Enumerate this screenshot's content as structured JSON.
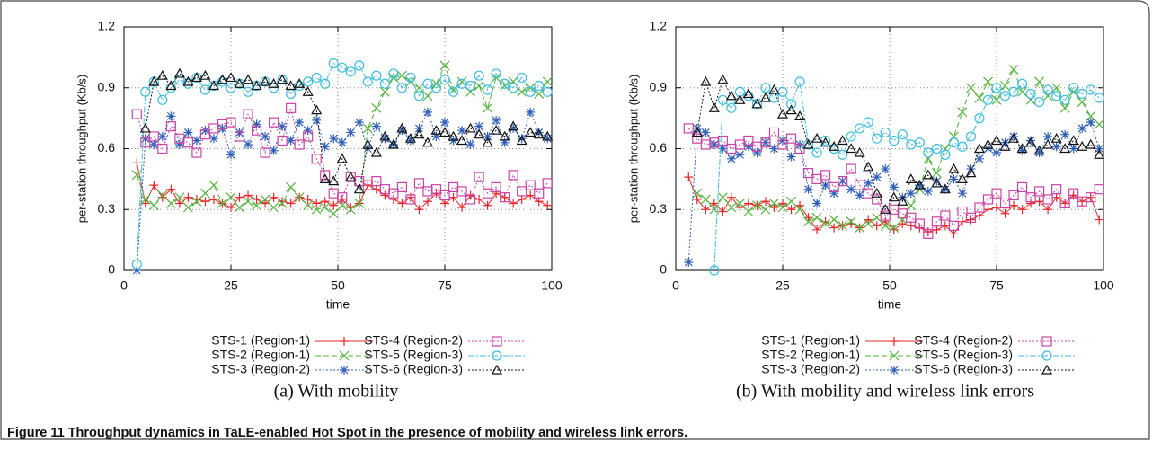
{
  "chart_data": [
    {
      "type": "line",
      "caption": "(a) With mobility",
      "xlabel": "time",
      "ylabel": "per-station throughput (Kb/s)",
      "xlim": [
        0,
        100
      ],
      "ylim": [
        0,
        1.2
      ],
      "xticks": [
        0,
        25,
        50,
        75,
        100
      ],
      "yticks": [
        0,
        0.3,
        0.6,
        0.9,
        1.2
      ],
      "grid": true,
      "x": [
        3,
        5,
        7,
        9,
        11,
        13,
        15,
        17,
        19,
        21,
        23,
        25,
        27,
        29,
        31,
        33,
        35,
        37,
        39,
        41,
        43,
        45,
        47,
        49,
        51,
        53,
        55,
        57,
        59,
        61,
        63,
        65,
        67,
        69,
        71,
        73,
        75,
        77,
        79,
        81,
        83,
        85,
        87,
        89,
        91,
        93,
        95,
        97,
        99
      ],
      "series": [
        {
          "name": "STS-1 (Region-1)",
          "color": "#e8272a",
          "marker": "plus",
          "dash": "solid",
          "values": [
            0.53,
            0.33,
            0.42,
            0.36,
            0.4,
            0.33,
            0.36,
            0.35,
            0.34,
            0.35,
            0.33,
            0.31,
            0.36,
            0.37,
            0.35,
            0.33,
            0.36,
            0.34,
            0.33,
            0.36,
            0.35,
            0.33,
            0.34,
            0.32,
            0.35,
            0.31,
            0.33,
            0.42,
            0.4,
            0.37,
            0.35,
            0.33,
            0.36,
            0.3,
            0.34,
            0.38,
            0.33,
            0.36,
            0.31,
            0.37,
            0.35,
            0.32,
            0.38,
            0.36,
            0.33,
            0.35,
            0.37,
            0.34,
            0.32
          ]
        },
        {
          "name": "STS-2 (Region-1)",
          "color": "#55b33c",
          "marker": "cross",
          "dash": "dashed",
          "values": [
            0.47,
            0.35,
            0.32,
            0.37,
            0.33,
            0.36,
            0.31,
            0.34,
            0.38,
            0.42,
            0.33,
            0.36,
            0.31,
            0.34,
            0.32,
            0.35,
            0.31,
            0.33,
            0.41,
            0.36,
            0.32,
            0.3,
            0.31,
            0.28,
            0.32,
            0.3,
            0.33,
            0.7,
            0.8,
            0.88,
            0.95,
            0.96,
            0.93,
            0.9,
            0.86,
            0.92,
            1.01,
            0.89,
            0.93,
            0.88,
            0.91,
            0.8,
            0.95,
            0.91,
            0.93,
            0.88,
            0.9,
            0.87,
            0.93
          ]
        },
        {
          "name": "STS-3 (Region-2)",
          "color": "#2e5fb7",
          "marker": "star",
          "dash": "dotted",
          "values": [
            0.0,
            0.65,
            0.62,
            0.66,
            0.76,
            0.62,
            0.68,
            0.64,
            0.69,
            0.65,
            0.7,
            0.57,
            0.68,
            0.62,
            0.72,
            0.66,
            0.59,
            0.71,
            0.64,
            0.73,
            0.69,
            0.74,
            0.61,
            0.65,
            0.63,
            0.68,
            0.73,
            0.6,
            0.71,
            0.65,
            0.62,
            0.69,
            0.64,
            0.7,
            0.78,
            0.66,
            0.73,
            0.64,
            0.69,
            0.62,
            0.71,
            0.66,
            0.74,
            0.63,
            0.7,
            0.65,
            0.78,
            0.68,
            0.65
          ]
        },
        {
          "name": "STS-4 (Region-2)",
          "color": "#c843a5",
          "marker": "square",
          "dash": "dotted",
          "values": [
            0.77,
            0.63,
            0.66,
            0.6,
            0.71,
            0.65,
            0.63,
            0.58,
            0.67,
            0.7,
            0.72,
            0.73,
            0.66,
            0.77,
            0.69,
            0.58,
            0.73,
            0.64,
            0.8,
            0.62,
            0.66,
            0.55,
            0.47,
            0.38,
            0.36,
            0.46,
            0.44,
            0.42,
            0.44,
            0.4,
            0.38,
            0.41,
            0.35,
            0.43,
            0.39,
            0.4,
            0.37,
            0.41,
            0.39,
            0.35,
            0.46,
            0.38,
            0.41,
            0.36,
            0.47,
            0.39,
            0.42,
            0.38,
            0.43
          ]
        },
        {
          "name": "STS-5 (Region-3)",
          "color": "#3fbde0",
          "marker": "circle",
          "dash": "dashdot",
          "values": [
            0.03,
            0.88,
            0.93,
            0.84,
            0.9,
            0.94,
            0.92,
            0.95,
            0.89,
            0.91,
            0.93,
            0.9,
            0.92,
            0.88,
            0.91,
            0.93,
            0.9,
            0.94,
            0.87,
            0.91,
            0.93,
            0.95,
            0.92,
            1.02,
            1.0,
            0.98,
            1.01,
            0.93,
            0.96,
            0.92,
            0.97,
            0.9,
            0.95,
            0.86,
            0.92,
            0.9,
            0.94,
            0.88,
            0.92,
            0.91,
            0.96,
            0.89,
            0.97,
            0.92,
            0.9,
            0.95,
            0.88,
            0.91,
            0.88
          ]
        },
        {
          "name": "STS-6 (Region-3)",
          "color": "#111111",
          "marker": "triangle",
          "dash": "dotted",
          "values": [
            null,
            0.7,
            0.93,
            0.96,
            0.91,
            0.97,
            0.93,
            0.95,
            0.96,
            0.91,
            0.94,
            0.95,
            0.92,
            0.94,
            0.91,
            0.93,
            0.92,
            0.94,
            0.91,
            0.92,
            0.88,
            0.79,
            0.45,
            0.44,
            0.55,
            0.46,
            0.4,
            0.62,
            0.58,
            0.66,
            0.62,
            0.7,
            0.65,
            0.67,
            0.63,
            0.69,
            0.68,
            0.66,
            0.64,
            0.7,
            0.67,
            0.63,
            0.69,
            0.66,
            0.71,
            0.64,
            0.68,
            0.67,
            0.66
          ]
        }
      ]
    },
    {
      "type": "line",
      "caption": "(b) With mobility and wireless link errors",
      "xlabel": "time",
      "ylabel": "per-station throughput (Kb/s)",
      "xlim": [
        0,
        100
      ],
      "ylim": [
        0,
        1.2
      ],
      "xticks": [
        0,
        25,
        50,
        75,
        100
      ],
      "yticks": [
        0,
        0.3,
        0.6,
        0.9,
        1.2
      ],
      "grid": true,
      "x": [
        3,
        5,
        7,
        9,
        11,
        13,
        15,
        17,
        19,
        21,
        23,
        25,
        27,
        29,
        31,
        33,
        35,
        37,
        39,
        41,
        43,
        45,
        47,
        49,
        51,
        53,
        55,
        57,
        59,
        61,
        63,
        65,
        67,
        69,
        71,
        73,
        75,
        77,
        79,
        81,
        83,
        85,
        87,
        89,
        91,
        93,
        95,
        97,
        99
      ],
      "series": [
        {
          "name": "STS-1 (Region-1)",
          "color": "#e8272a",
          "marker": "plus",
          "dash": "solid",
          "values": [
            0.46,
            0.35,
            0.3,
            0.33,
            0.29,
            0.36,
            0.31,
            0.33,
            0.32,
            0.34,
            0.31,
            0.33,
            0.3,
            0.32,
            0.26,
            0.2,
            0.24,
            0.21,
            0.22,
            0.23,
            0.21,
            0.25,
            0.22,
            0.24,
            0.2,
            0.23,
            0.22,
            0.21,
            0.19,
            0.2,
            0.22,
            0.18,
            0.24,
            0.25,
            0.27,
            0.3,
            0.31,
            0.28,
            0.32,
            0.3,
            0.33,
            0.34,
            0.3,
            0.36,
            0.33,
            0.37,
            0.34,
            0.36,
            0.25
          ]
        },
        {
          "name": "STS-2 (Region-1)",
          "color": "#55b33c",
          "marker": "cross",
          "dash": "dashed",
          "values": [
            null,
            0.38,
            0.35,
            0.3,
            0.36,
            0.31,
            0.33,
            0.29,
            0.32,
            0.3,
            0.33,
            0.31,
            0.34,
            0.3,
            0.24,
            0.26,
            0.23,
            0.25,
            0.22,
            0.24,
            0.21,
            0.23,
            0.26,
            0.22,
            0.21,
            0.25,
            0.32,
            0.4,
            0.55,
            0.48,
            0.6,
            0.66,
            0.78,
            0.9,
            0.85,
            0.93,
            0.84,
            0.91,
            0.99,
            0.88,
            0.84,
            0.93,
            0.86,
            0.9,
            0.8,
            0.88,
            0.83,
            0.76,
            0.72
          ]
        },
        {
          "name": "STS-3 (Region-2)",
          "color": "#2e5fb7",
          "marker": "star",
          "dash": "dotted",
          "values": [
            0.04,
            0.7,
            0.68,
            0.62,
            0.6,
            0.55,
            0.57,
            0.61,
            0.58,
            0.63,
            0.6,
            0.64,
            0.56,
            0.62,
            0.4,
            0.33,
            0.42,
            0.38,
            0.44,
            0.4,
            0.37,
            0.43,
            0.46,
            0.5,
            0.41,
            0.36,
            0.38,
            0.42,
            0.39,
            0.44,
            0.4,
            0.45,
            0.38,
            0.5,
            0.55,
            0.6,
            0.58,
            0.63,
            0.66,
            0.59,
            0.64,
            0.58,
            0.66,
            0.61,
            0.67,
            0.6,
            0.7,
            0.73,
            0.6
          ]
        },
        {
          "name": "STS-4 (Region-2)",
          "color": "#c843a5",
          "marker": "square",
          "dash": "dotted",
          "values": [
            0.7,
            0.65,
            0.62,
            0.63,
            0.64,
            0.6,
            0.62,
            0.64,
            0.61,
            0.63,
            0.68,
            0.62,
            0.65,
            0.6,
            0.48,
            0.45,
            0.47,
            0.41,
            0.44,
            0.5,
            0.42,
            0.38,
            0.35,
            0.27,
            0.3,
            0.28,
            0.26,
            0.23,
            0.18,
            0.24,
            0.27,
            0.22,
            0.29,
            0.26,
            0.31,
            0.35,
            0.38,
            0.33,
            0.37,
            0.41,
            0.36,
            0.39,
            0.35,
            0.4,
            0.33,
            0.38,
            0.34,
            0.36,
            0.4
          ]
        },
        {
          "name": "STS-5 (Region-3)",
          "color": "#3fbde0",
          "marker": "circle",
          "dash": "dashdot",
          "values": [
            null,
            null,
            null,
            0.0,
            0.84,
            0.8,
            0.88,
            0.86,
            0.82,
            0.9,
            0.85,
            0.88,
            0.82,
            0.93,
            0.62,
            0.58,
            0.64,
            0.6,
            0.57,
            0.66,
            0.7,
            0.73,
            0.65,
            0.68,
            0.64,
            0.67,
            0.62,
            0.63,
            0.58,
            0.6,
            0.57,
            0.63,
            0.61,
            0.66,
            0.75,
            0.84,
            0.9,
            0.86,
            0.88,
            0.92,
            0.87,
            0.83,
            0.89,
            0.86,
            0.84,
            0.9,
            0.87,
            0.89,
            0.85
          ]
        },
        {
          "name": "STS-6 (Region-3)",
          "color": "#111111",
          "marker": "triangle",
          "dash": "dotted",
          "values": [
            null,
            0.68,
            0.93,
            0.8,
            0.94,
            0.86,
            0.84,
            0.87,
            0.82,
            0.85,
            0.89,
            0.77,
            0.79,
            0.76,
            0.62,
            0.65,
            0.63,
            0.61,
            0.64,
            0.6,
            0.58,
            0.51,
            0.38,
            0.3,
            0.36,
            0.34,
            0.45,
            0.42,
            0.47,
            0.43,
            0.4,
            0.5,
            0.45,
            0.48,
            0.6,
            0.62,
            0.64,
            0.61,
            0.65,
            0.6,
            0.63,
            0.59,
            0.62,
            0.65,
            0.6,
            0.64,
            0.61,
            0.62,
            0.57
          ]
        }
      ]
    }
  ],
  "figure": {
    "label": "Figure 11",
    "text": "Throughput dynamics in TaLE-enabled Hot Spot in the presence of mobility and wireless link errors."
  }
}
